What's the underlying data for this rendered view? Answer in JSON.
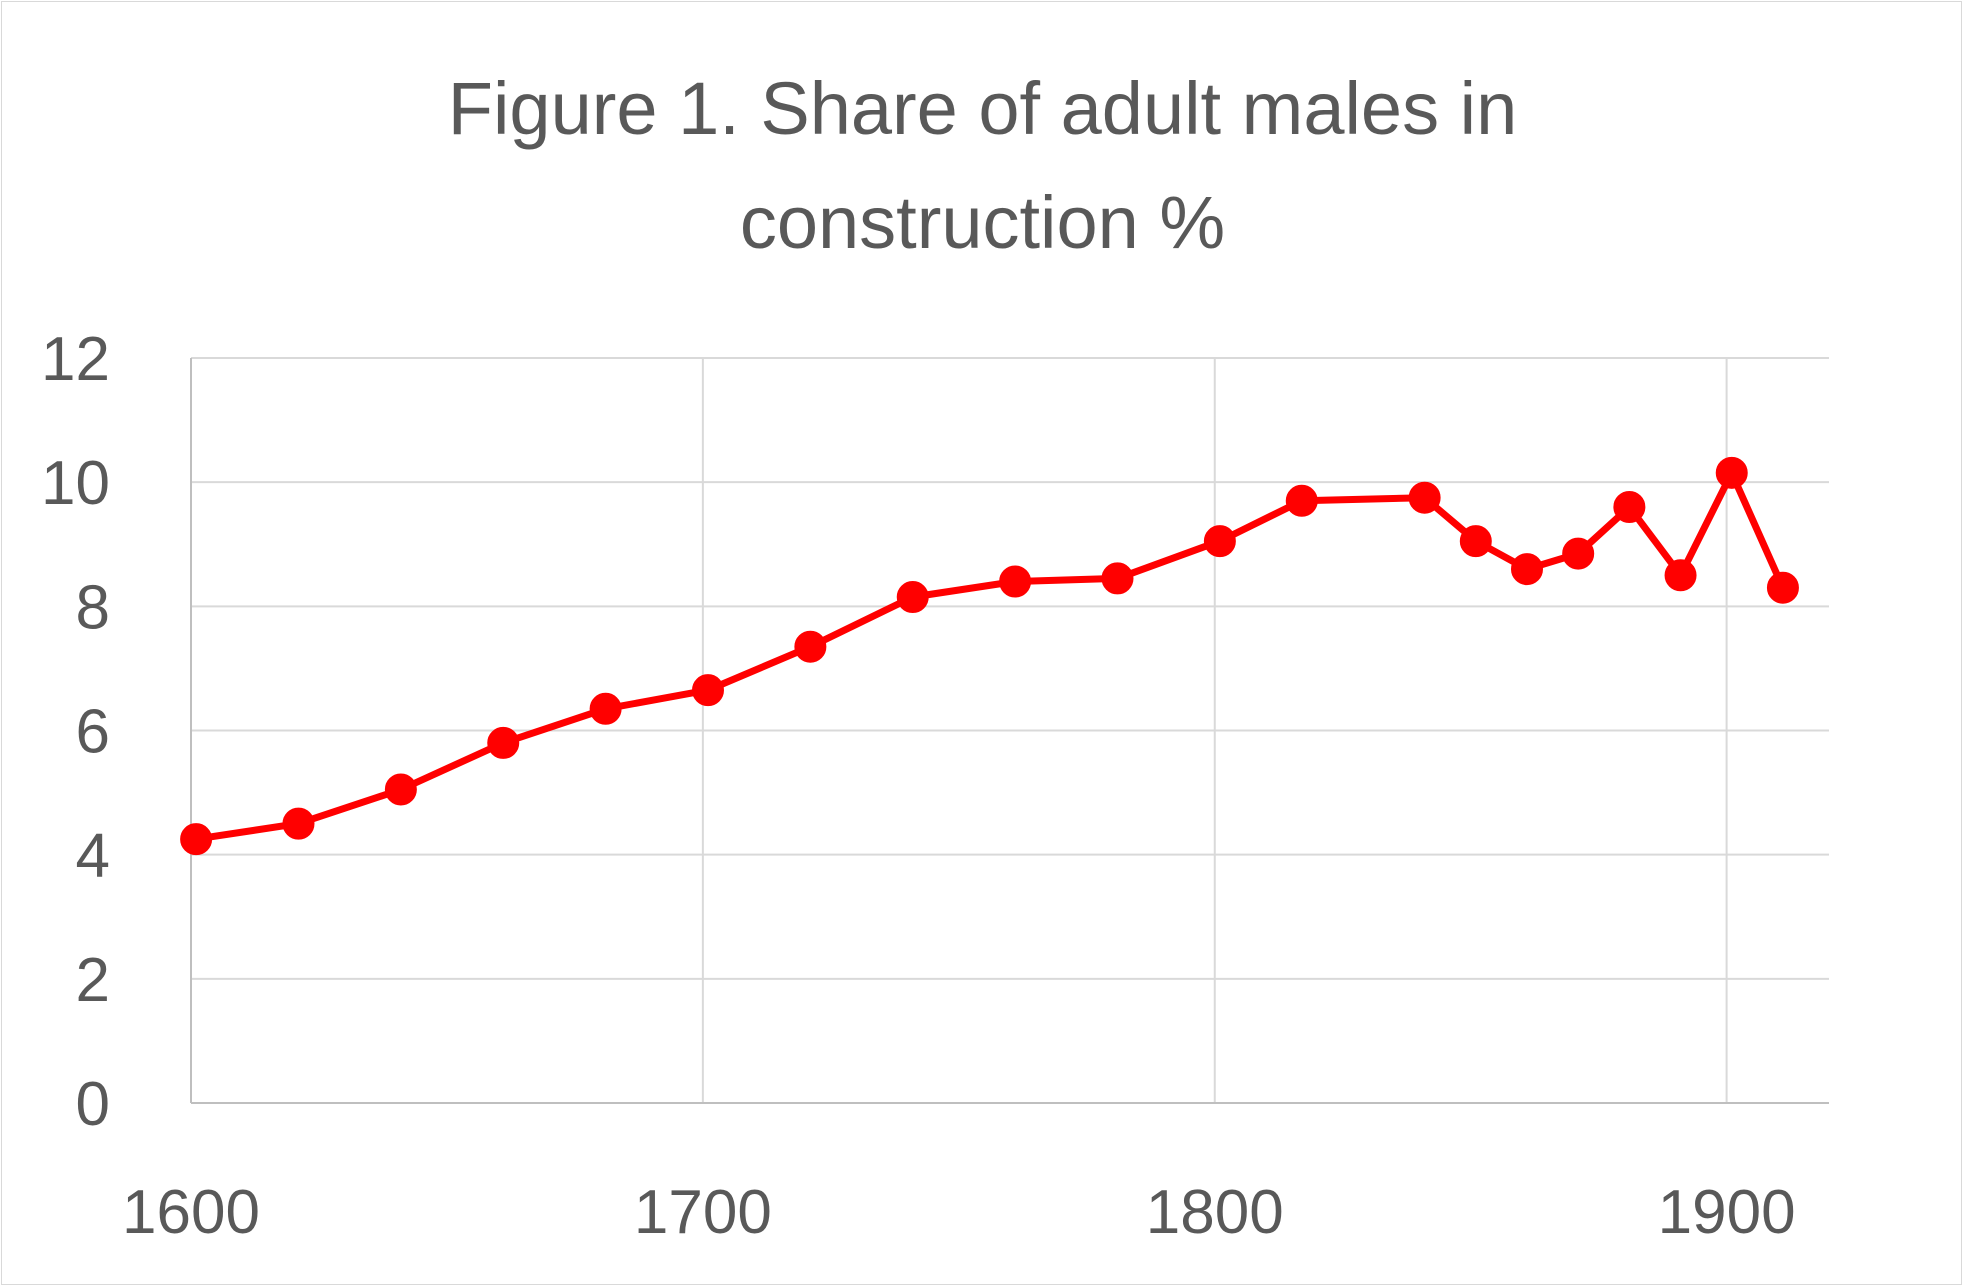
{
  "chart_data": {
    "type": "line",
    "title": "Figure 1. Share of adult males in construction %",
    "title_lines": [
      "Figure 1. Share of adult males in",
      "construction %"
    ],
    "xlabel": "",
    "ylabel": "",
    "xlim": [
      1600,
      1920
    ],
    "ylim": [
      0,
      12
    ],
    "x_ticks": [
      1600,
      1700,
      1800,
      1900
    ],
    "y_ticks": [
      0,
      2,
      4,
      6,
      8,
      10,
      12
    ],
    "grid": true,
    "legend": "none",
    "series": [
      {
        "color": "#ff0000",
        "marker": "circle",
        "x": [
          1601,
          1621,
          1641,
          1661,
          1681,
          1701,
          1721,
          1741,
          1761,
          1781,
          1801,
          1817,
          1841,
          1851,
          1861,
          1871,
          1881,
          1891,
          1901,
          1911
        ],
        "y": [
          4.25,
          4.5,
          5.05,
          5.8,
          6.35,
          6.65,
          7.35,
          8.15,
          8.4,
          8.45,
          9.05,
          9.7,
          9.75,
          9.05,
          8.6,
          8.85,
          9.6,
          8.5,
          10.15,
          8.3
        ]
      }
    ]
  },
  "colors": {
    "grid": "#d9d9d9",
    "axis": "#bfbfbf",
    "text": "#595959",
    "series": "#ff0000"
  }
}
